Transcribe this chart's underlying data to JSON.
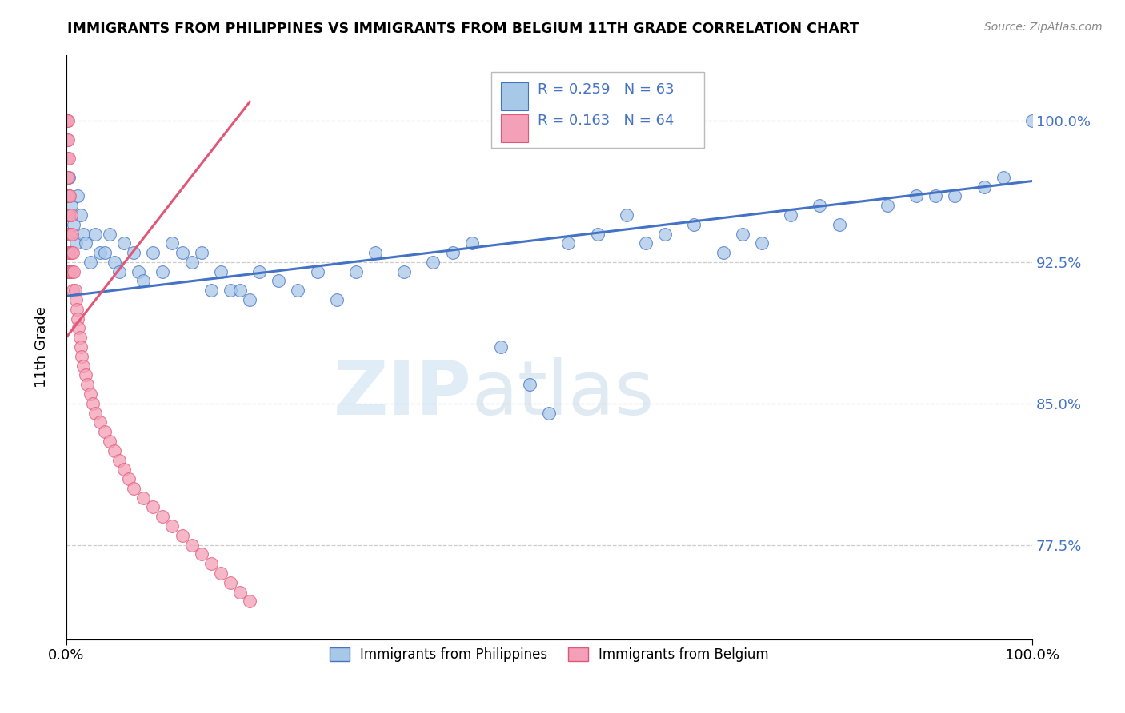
{
  "title": "IMMIGRANTS FROM PHILIPPINES VS IMMIGRANTS FROM BELGIUM 11TH GRADE CORRELATION CHART",
  "source": "Source: ZipAtlas.com",
  "ylabel": "11th Grade",
  "xlim": [
    0.0,
    1.0
  ],
  "ylim": [
    0.725,
    1.035
  ],
  "yticks": [
    0.775,
    0.85,
    0.925,
    1.0
  ],
  "ytick_labels": [
    "77.5%",
    "85.0%",
    "92.5%",
    "100.0%"
  ],
  "r_philippines": 0.259,
  "n_philippines": 63,
  "r_belgium": 0.163,
  "n_belgium": 64,
  "color_philippines": "#a8c8e8",
  "color_belgium": "#f4a0b8",
  "line_color_philippines": "#4472c4",
  "line_color_belgium": "#e05878",
  "legend_label_philippines": "Immigrants from Philippines",
  "legend_label_belgium": "Immigrants from Belgium",
  "phil_x": [
    0.003,
    0.005,
    0.008,
    0.01,
    0.012,
    0.015,
    0.018,
    0.02,
    0.025,
    0.03,
    0.035,
    0.04,
    0.045,
    0.05,
    0.055,
    0.06,
    0.07,
    0.075,
    0.08,
    0.09,
    0.1,
    0.11,
    0.12,
    0.13,
    0.14,
    0.15,
    0.16,
    0.17,
    0.18,
    0.19,
    0.2,
    0.22,
    0.24,
    0.26,
    0.28,
    0.3,
    0.32,
    0.35,
    0.38,
    0.4,
    0.42,
    0.45,
    0.48,
    0.5,
    0.52,
    0.55,
    0.58,
    0.6,
    0.62,
    0.65,
    0.68,
    0.7,
    0.72,
    0.75,
    0.78,
    0.8,
    0.85,
    0.88,
    0.9,
    0.92,
    0.95,
    0.97,
    1.0
  ],
  "phil_y": [
    0.97,
    0.955,
    0.945,
    0.935,
    0.96,
    0.95,
    0.94,
    0.935,
    0.925,
    0.94,
    0.93,
    0.93,
    0.94,
    0.925,
    0.92,
    0.935,
    0.93,
    0.92,
    0.915,
    0.93,
    0.92,
    0.935,
    0.93,
    0.925,
    0.93,
    0.91,
    0.92,
    0.91,
    0.91,
    0.905,
    0.92,
    0.915,
    0.91,
    0.92,
    0.905,
    0.92,
    0.93,
    0.92,
    0.925,
    0.93,
    0.935,
    0.88,
    0.86,
    0.845,
    0.935,
    0.94,
    0.95,
    0.935,
    0.94,
    0.945,
    0.93,
    0.94,
    0.935,
    0.95,
    0.955,
    0.945,
    0.955,
    0.96,
    0.96,
    0.96,
    0.965,
    0.97,
    1.0
  ],
  "belg_x": [
    0.001,
    0.001,
    0.001,
    0.001,
    0.001,
    0.001,
    0.001,
    0.001,
    0.002,
    0.002,
    0.002,
    0.002,
    0.002,
    0.002,
    0.002,
    0.003,
    0.003,
    0.003,
    0.003,
    0.003,
    0.004,
    0.004,
    0.004,
    0.005,
    0.005,
    0.006,
    0.006,
    0.007,
    0.007,
    0.008,
    0.009,
    0.01,
    0.011,
    0.012,
    0.013,
    0.014,
    0.015,
    0.016,
    0.018,
    0.02,
    0.022,
    0.025,
    0.028,
    0.03,
    0.035,
    0.04,
    0.045,
    0.05,
    0.055,
    0.06,
    0.065,
    0.07,
    0.08,
    0.09,
    0.1,
    0.11,
    0.12,
    0.13,
    0.14,
    0.15,
    0.16,
    0.17,
    0.18,
    0.19
  ],
  "belg_y": [
    1.0,
    1.0,
    0.99,
    0.98,
    0.97,
    0.96,
    0.95,
    0.94,
    1.0,
    0.99,
    0.97,
    0.96,
    0.95,
    0.93,
    0.92,
    0.98,
    0.96,
    0.95,
    0.93,
    0.92,
    0.96,
    0.94,
    0.92,
    0.95,
    0.93,
    0.94,
    0.92,
    0.93,
    0.91,
    0.92,
    0.91,
    0.905,
    0.9,
    0.895,
    0.89,
    0.885,
    0.88,
    0.875,
    0.87,
    0.865,
    0.86,
    0.855,
    0.85,
    0.845,
    0.84,
    0.835,
    0.83,
    0.825,
    0.82,
    0.815,
    0.81,
    0.805,
    0.8,
    0.795,
    0.79,
    0.785,
    0.78,
    0.775,
    0.77,
    0.765,
    0.76,
    0.755,
    0.75,
    0.745
  ],
  "blue_line_x": [
    0.0,
    1.0
  ],
  "blue_line_y": [
    0.907,
    0.968
  ],
  "pink_line_x": [
    0.0,
    0.19
  ],
  "pink_line_y": [
    0.885,
    1.01
  ]
}
